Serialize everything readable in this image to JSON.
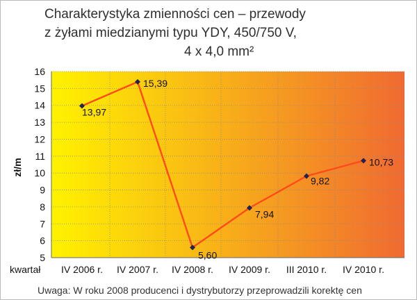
{
  "chart_data": {
    "type": "line",
    "title": [
      "Charakterystyka zmienności cen – przewody",
      "z żyłami miedzianymi typu YDY, 450/750 V,",
      "4 x 4,0 mm²"
    ],
    "xlabel": "kwartał",
    "ylabel": "zł/m",
    "categories": [
      "IV 2006 r.",
      "IV 2007 r.",
      "IV 2008 r.",
      "IV 2009 r.",
      "III 2010 r.",
      "IV 2010 r."
    ],
    "values": [
      13.97,
      15.39,
      5.6,
      7.94,
      9.82,
      10.73
    ],
    "data_labels": [
      "13,97",
      "15,39",
      "5,60",
      "7,94",
      "9,82",
      "10,73"
    ],
    "ylim": [
      5,
      16
    ],
    "yticks": [
      5,
      6,
      7,
      8,
      9,
      10,
      11,
      12,
      13,
      14,
      15,
      16
    ],
    "grid": true,
    "legend": "none",
    "colors": {
      "line": "#ff4a1a",
      "marker": "#23234d",
      "gradient_start": "#fff200",
      "gradient_end": "#f06a32",
      "grid": "#8a8a8a"
    }
  },
  "note": "Uwaga: W roku 2008 producenci i dystrybutorzy przeprowadzili korektę cen"
}
